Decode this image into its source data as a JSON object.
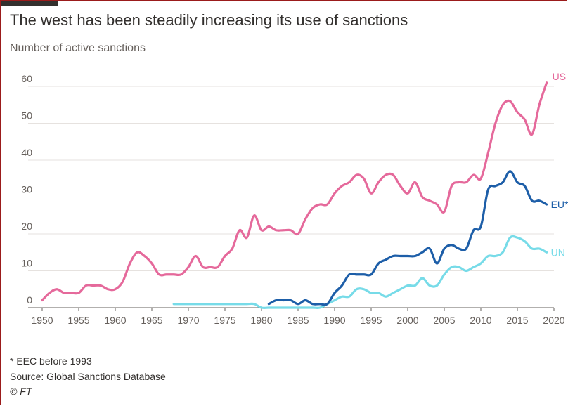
{
  "header": {
    "title": "The west has been steadily increasing its use of sanctions",
    "subtitle": "Number of active sanctions"
  },
  "footer": {
    "note": "* EEC before 1993",
    "source": "Source: Global Sanctions Database",
    "credit": "© FT"
  },
  "colors": {
    "US": "#e5699b",
    "EU": "#1d5ea8",
    "UN": "#77dbe8",
    "grid": "#e6e2df",
    "axis": "#66605c"
  },
  "chart_data": {
    "type": "line",
    "title": "The west has been steadily increasing its use of sanctions",
    "ylabel": "Number of active sanctions",
    "xlim": [
      1950,
      2020
    ],
    "ylim": [
      0,
      60
    ],
    "x_ticks": [
      1950,
      1955,
      1960,
      1965,
      1970,
      1975,
      1980,
      1985,
      1990,
      1995,
      2000,
      2005,
      2010,
      2015,
      2020
    ],
    "y_ticks": [
      0,
      10,
      20,
      30,
      40,
      50,
      60
    ],
    "grid": true,
    "series": [
      {
        "name": "US",
        "x": [
          1950,
          1951,
          1952,
          1953,
          1954,
          1955,
          1956,
          1957,
          1958,
          1959,
          1960,
          1961,
          1962,
          1963,
          1964,
          1965,
          1966,
          1967,
          1968,
          1969,
          1970,
          1971,
          1972,
          1973,
          1974,
          1975,
          1976,
          1977,
          1978,
          1979,
          1980,
          1981,
          1982,
          1983,
          1984,
          1985,
          1986,
          1987,
          1988,
          1989,
          1990,
          1991,
          1992,
          1993,
          1994,
          1995,
          1996,
          1997,
          1998,
          1999,
          2000,
          2001,
          2002,
          2003,
          2004,
          2005,
          2006,
          2007,
          2008,
          2009,
          2010,
          2011,
          2012,
          2013,
          2014,
          2015,
          2016,
          2017,
          2018,
          2019
        ],
        "values": [
          2,
          4,
          5,
          4,
          4,
          4,
          6,
          6,
          6,
          5,
          5,
          7,
          12,
          15,
          14,
          12,
          9,
          9,
          9,
          9,
          11,
          14,
          11,
          11,
          11,
          14,
          16,
          21,
          19,
          25,
          21,
          22,
          21,
          21,
          21,
          20,
          24,
          27,
          28,
          28,
          31,
          33,
          34,
          36,
          35,
          31,
          34,
          36,
          36,
          33,
          31,
          34,
          30,
          29,
          28,
          26,
          33,
          34,
          34,
          36,
          35,
          42,
          50,
          55,
          56,
          53,
          51,
          47,
          55,
          61
        ]
      },
      {
        "name": "EU*",
        "x": [
          1981,
          1982,
          1983,
          1984,
          1985,
          1986,
          1987,
          1988,
          1989,
          1990,
          1991,
          1992,
          1993,
          1994,
          1995,
          1996,
          1997,
          1998,
          1999,
          2000,
          2001,
          2002,
          2003,
          2004,
          2005,
          2006,
          2007,
          2008,
          2009,
          2010,
          2011,
          2012,
          2013,
          2014,
          2015,
          2016,
          2017,
          2018,
          2019
        ],
        "values": [
          1,
          2,
          2,
          2,
          1,
          2,
          1,
          1,
          1,
          4,
          6,
          9,
          9,
          9,
          9,
          12,
          13,
          14,
          14,
          14,
          14,
          15,
          16,
          12,
          16,
          17,
          16,
          16,
          21,
          22,
          32,
          33,
          34,
          37,
          34,
          33,
          29,
          29,
          28
        ]
      },
      {
        "name": "UN",
        "x": [
          1968,
          1969,
          1970,
          1971,
          1972,
          1973,
          1974,
          1975,
          1976,
          1977,
          1978,
          1979,
          1980,
          1981,
          1982,
          1983,
          1984,
          1985,
          1986,
          1987,
          1988,
          1989,
          1990,
          1991,
          1992,
          1993,
          1994,
          1995,
          1996,
          1997,
          1998,
          1999,
          2000,
          2001,
          2002,
          2003,
          2004,
          2005,
          2006,
          2007,
          2008,
          2009,
          2010,
          2011,
          2012,
          2013,
          2014,
          2015,
          2016,
          2017,
          2018,
          2019
        ],
        "values": [
          1,
          1,
          1,
          1,
          1,
          1,
          1,
          1,
          1,
          1,
          1,
          1,
          0,
          0,
          0,
          0,
          0,
          0,
          0,
          0,
          0,
          1,
          2,
          3,
          3,
          5,
          5,
          4,
          4,
          3,
          4,
          5,
          6,
          6,
          8,
          6,
          6,
          9,
          11,
          11,
          10,
          11,
          12,
          14,
          14,
          15,
          19,
          19,
          18,
          16,
          16,
          15
        ]
      }
    ]
  }
}
